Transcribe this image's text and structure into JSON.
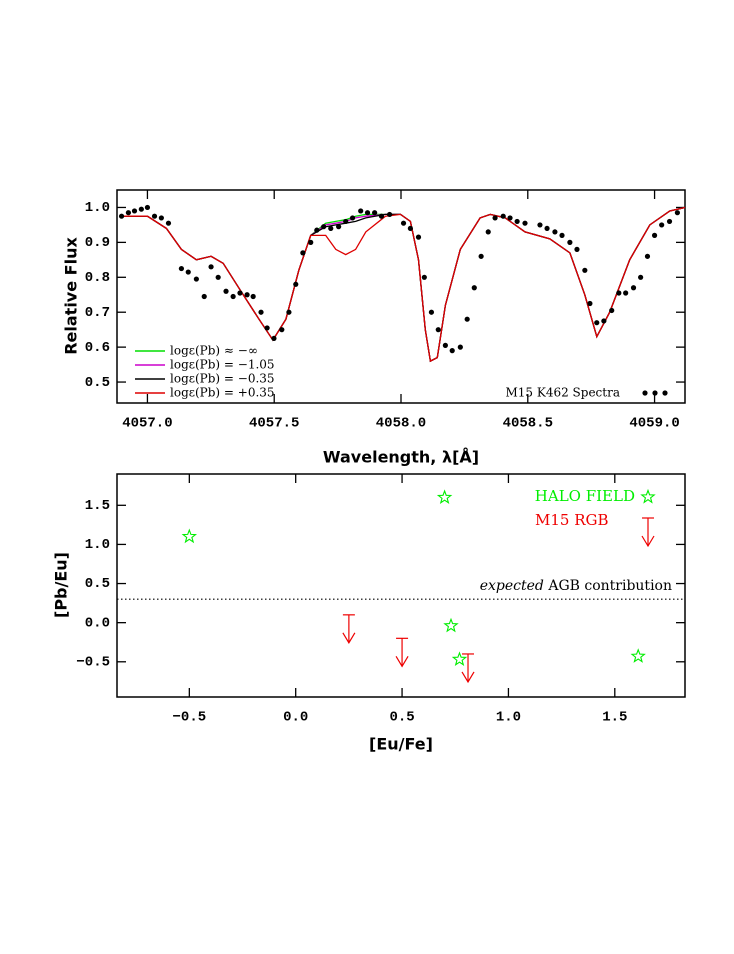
{
  "chart_data": [
    {
      "type": "line",
      "xlabel": "Wavelength, λ[Å]",
      "ylabel": "Relative Flux",
      "xlim": [
        4056.88,
        4059.12
      ],
      "ylim": [
        0.44,
        1.05
      ],
      "xticks": [
        {
          "value": 4057,
          "label": "4057.0"
        },
        {
          "value": 4057.5,
          "label": "4057.5"
        },
        {
          "value": 4058,
          "label": "4058.0"
        },
        {
          "value": 4058.5,
          "label": "4058.5"
        },
        {
          "value": 4059,
          "label": "4059.0"
        }
      ],
      "yticks": [
        0.5,
        0.6,
        0.7,
        0.8,
        0.9,
        {
          "value": 1,
          "label": "1.0"
        }
      ],
      "x": [
        4056.89,
        4057.0,
        4057.075,
        4057.134,
        4057.193,
        4057.251,
        4057.299,
        4057.369,
        4057.44,
        4057.495,
        4057.546,
        4057.597,
        4057.644,
        4057.703,
        4057.743,
        4057.782,
        4057.821,
        4057.861,
        4057.939,
        4057.998,
        4058.037,
        4058.069,
        4058.096,
        4058.116,
        4058.143,
        4058.175,
        4058.234,
        4058.312,
        4058.352,
        4058.411,
        4058.489,
        4058.587,
        4058.666,
        4058.725,
        4058.772,
        4058.823,
        4058.902,
        4058.981,
        4059.06,
        4059.12
      ],
      "series": [
        {
          "name": "logε(Pb) ≈ −∞",
          "color": "#00dd00",
          "values": [
            0.975,
            0.975,
            0.94,
            0.88,
            0.85,
            0.86,
            0.84,
            0.76,
            0.68,
            0.62,
            0.68,
            0.82,
            0.92,
            0.955,
            0.96,
            0.965,
            0.975,
            0.98,
            0.98,
            0.98,
            0.96,
            0.85,
            0.65,
            0.56,
            0.57,
            0.72,
            0.88,
            0.97,
            0.98,
            0.97,
            0.93,
            0.91,
            0.87,
            0.75,
            0.63,
            0.7,
            0.85,
            0.95,
            0.99,
            1.0
          ]
        },
        {
          "name": "logε(Pb) = −1.05",
          "color": "#cc00cc",
          "values": [
            0.975,
            0.975,
            0.94,
            0.88,
            0.85,
            0.86,
            0.84,
            0.76,
            0.68,
            0.62,
            0.68,
            0.82,
            0.92,
            0.95,
            0.955,
            0.96,
            0.97,
            0.975,
            0.98,
            0.98,
            0.96,
            0.85,
            0.65,
            0.56,
            0.57,
            0.72,
            0.88,
            0.97,
            0.98,
            0.97,
            0.93,
            0.91,
            0.87,
            0.75,
            0.63,
            0.7,
            0.85,
            0.95,
            0.99,
            1.0
          ]
        },
        {
          "name": "logε(Pb) = −0.35",
          "color": "#000000",
          "values": [
            0.975,
            0.975,
            0.94,
            0.88,
            0.85,
            0.86,
            0.84,
            0.76,
            0.68,
            0.62,
            0.68,
            0.82,
            0.92,
            0.945,
            0.95,
            0.955,
            0.96,
            0.97,
            0.98,
            0.98,
            0.96,
            0.85,
            0.65,
            0.56,
            0.57,
            0.72,
            0.88,
            0.97,
            0.98,
            0.97,
            0.93,
            0.91,
            0.87,
            0.75,
            0.63,
            0.7,
            0.85,
            0.95,
            0.99,
            1.0
          ]
        },
        {
          "name": "logε(Pb) = +0.35",
          "color": "#dd0000",
          "values": [
            0.975,
            0.975,
            0.94,
            0.88,
            0.85,
            0.86,
            0.84,
            0.76,
            0.68,
            0.62,
            0.68,
            0.82,
            0.92,
            0.92,
            0.88,
            0.865,
            0.88,
            0.93,
            0.975,
            0.98,
            0.96,
            0.85,
            0.65,
            0.56,
            0.57,
            0.72,
            0.88,
            0.97,
            0.98,
            0.97,
            0.93,
            0.91,
            0.87,
            0.75,
            0.63,
            0.7,
            0.85,
            0.95,
            0.99,
            1.0
          ]
        }
      ],
      "points": {
        "name": "M15 K462 Spectra",
        "color": "#000000",
        "x": [
          4056.898,
          4056.925,
          4056.949,
          4056.976,
          4057.0,
          4057.028,
          4057.055,
          4057.083,
          4057.134,
          4057.161,
          4057.193,
          4057.224,
          4057.251,
          4057.279,
          4057.31,
          4057.338,
          4057.365,
          4057.393,
          4057.417,
          4057.448,
          4057.472,
          4057.499,
          4057.53,
          4057.558,
          4057.585,
          4057.613,
          4057.644,
          4057.668,
          4057.695,
          4057.723,
          4057.754,
          4057.782,
          4057.809,
          4057.841,
          4057.868,
          4057.896,
          4057.923,
          4057.955,
          4058.01,
          4058.037,
          4058.069,
          4058.092,
          4058.12,
          4058.147,
          4058.175,
          4058.202,
          4058.234,
          4058.261,
          4058.289,
          4058.316,
          4058.344,
          4058.371,
          4058.403,
          4058.43,
          4058.458,
          4058.489,
          4058.548,
          4058.576,
          4058.607,
          4058.635,
          4058.666,
          4058.694,
          4058.725,
          4058.745,
          4058.772,
          4058.8,
          4058.831,
          4058.859,
          4058.886,
          4058.917,
          4058.945,
          4058.972,
          4059.0,
          4059.028,
          4059.059,
          4059.09
        ],
        "values": [
          0.975,
          0.985,
          0.99,
          0.995,
          1.0,
          0.975,
          0.97,
          0.955,
          0.825,
          0.815,
          0.795,
          0.745,
          0.83,
          0.8,
          0.76,
          0.745,
          0.755,
          0.75,
          0.745,
          0.7,
          0.655,
          0.625,
          0.65,
          0.7,
          0.78,
          0.87,
          0.9,
          0.935,
          0.945,
          0.94,
          0.945,
          0.96,
          0.97,
          0.99,
          0.985,
          0.985,
          0.975,
          0.98,
          0.955,
          0.94,
          0.915,
          0.8,
          0.7,
          0.65,
          0.605,
          0.59,
          0.6,
          0.68,
          0.77,
          0.86,
          0.93,
          0.97,
          0.975,
          0.97,
          0.96,
          0.955,
          0.95,
          0.94,
          0.93,
          0.92,
          0.9,
          0.88,
          0.82,
          0.725,
          0.67,
          0.675,
          0.705,
          0.755,
          0.755,
          0.77,
          0.8,
          0.86,
          0.92,
          0.95,
          0.96,
          0.985
        ]
      }
    },
    {
      "type": "scatter",
      "xlabel": "[Eu/Fe]",
      "ylabel": "[Pb/Eu]",
      "xlim": [
        -0.84,
        1.83
      ],
      "ylim": [
        -0.95,
        1.9
      ],
      "xticks": [
        {
          "value": -0.5,
          "label": "−0.5"
        },
        {
          "value": 0,
          "label": "0.0"
        },
        0.5,
        {
          "value": 1,
          "label": "1.0"
        },
        1.5
      ],
      "yticks": [
        {
          "value": -0.5,
          "label": "−0.5"
        },
        {
          "value": 0,
          "label": "0.0"
        },
        0.5,
        {
          "value": 1,
          "label": "1.0"
        },
        1.5
      ],
      "series": [
        {
          "name": "HALO FIELD",
          "color": "#00ee00",
          "marker": "star",
          "x": [
            -0.5,
            0.7,
            0.73,
            0.77,
            1.61
          ],
          "values": [
            1.1,
            1.6,
            -0.04,
            -0.47,
            -0.43
          ]
        },
        {
          "name": "M15 RGB",
          "color": "#ee0000",
          "marker": "upper-limit",
          "x": [
            0.25,
            0.5,
            0.81
          ],
          "values": [
            0.1,
            -0.2,
            -0.4
          ]
        }
      ],
      "hline": {
        "value": 0.3,
        "style": "dotted"
      },
      "annotation": [
        "expected",
        "AGB contribution"
      ]
    }
  ]
}
